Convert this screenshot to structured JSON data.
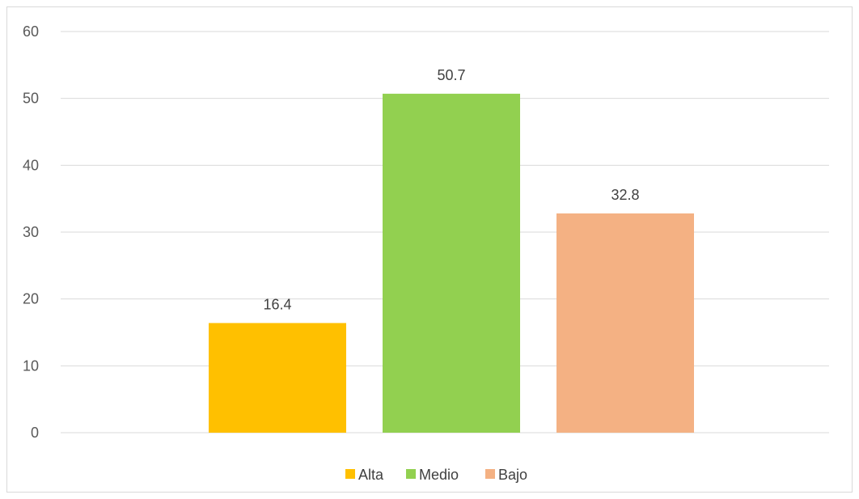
{
  "chart_data": {
    "type": "bar",
    "categories": [
      "Alta",
      "Medio",
      "Bajo"
    ],
    "values": [
      16.4,
      50.7,
      32.8
    ],
    "value_labels": [
      "16.4",
      "50.7",
      "32.8"
    ],
    "colors": [
      "#ffc000",
      "#92d050",
      "#f4b183"
    ],
    "title": "",
    "xlabel": "",
    "ylabel": "",
    "ylim": [
      0,
      60
    ],
    "yticks": [
      0,
      10,
      20,
      30,
      40,
      50,
      60
    ],
    "grid": true,
    "legend": "bottom",
    "gridline_color": "#d9d9d9"
  }
}
